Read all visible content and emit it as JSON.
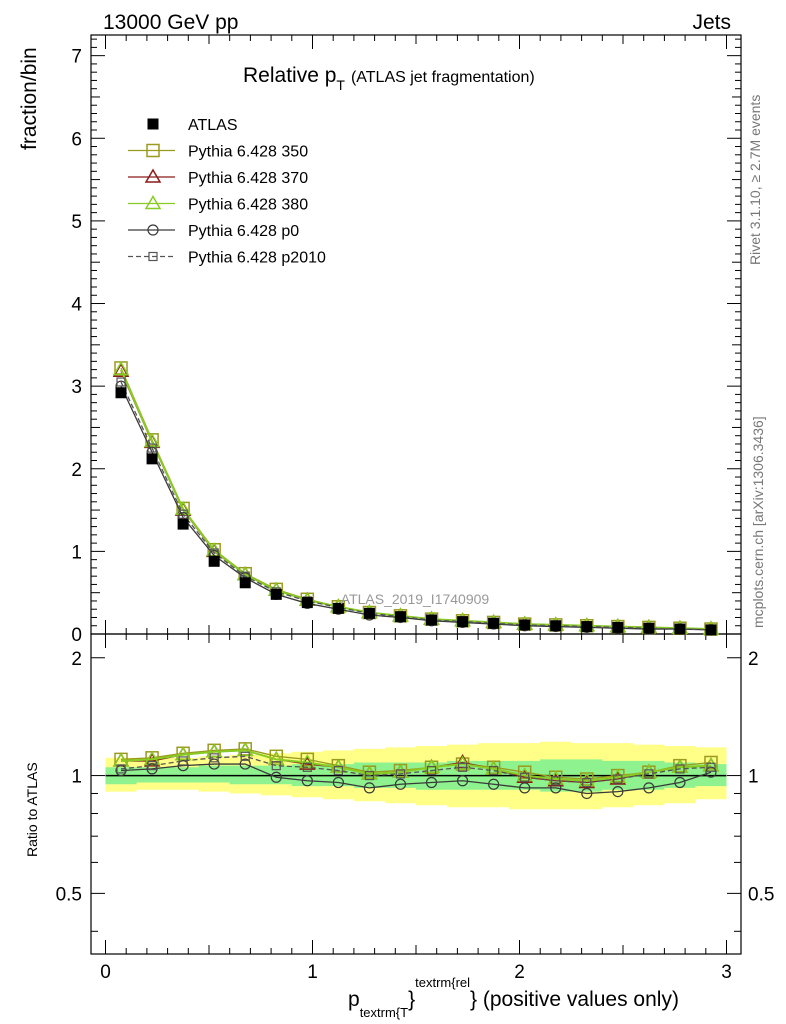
{
  "header": {
    "left": "13000 GeV pp",
    "right": "Jets"
  },
  "side_labels": {
    "top": "Rivet 3.1.10, ≥ 2.7M events",
    "bottom": "mcplots.cern.ch [arXiv:1306.3436]"
  },
  "title": {
    "main": "Relative p",
    "sub": "T",
    "paren": "(ATLAS jet fragmentation)"
  },
  "watermark": "ATLAS_2019_I1740909",
  "ylabel_top": "fraction/bin",
  "ylabel_bottom": "Ratio to ATLAS",
  "xlabel": {
    "p": "p",
    "sub": "textrm{T",
    "brace": "}",
    "sup": "textrm{rel",
    "tail": "} (positive values only)"
  },
  "chart_data": {
    "type": "line",
    "x": [
      0.075,
      0.225,
      0.375,
      0.525,
      0.675,
      0.825,
      0.975,
      1.125,
      1.275,
      1.425,
      1.575,
      1.725,
      1.875,
      2.025,
      2.175,
      2.325,
      2.475,
      2.625,
      2.775,
      2.925
    ],
    "xlim": [
      -0.07,
      3.07
    ],
    "ylim": [
      0,
      7.25
    ],
    "ratio_ylim": [
      0.35,
      2.3
    ],
    "xticks": [
      "0",
      "1",
      "2",
      "3"
    ],
    "yticks": [
      "0",
      "1",
      "2",
      "3",
      "4",
      "5",
      "6",
      "7"
    ],
    "ratio_yticks": [
      "0.5",
      "1",
      "2"
    ],
    "data": {
      "name": "ATLAS",
      "y": [
        2.92,
        2.12,
        1.33,
        0.88,
        0.62,
        0.48,
        0.38,
        0.31,
        0.25,
        0.21,
        0.17,
        0.15,
        0.13,
        0.11,
        0.1,
        0.09,
        0.08,
        0.07,
        0.06,
        0.05
      ]
    },
    "series": [
      {
        "name": "Pythia 6.428 350",
        "color": "#9a9a1e",
        "marker": "square",
        "dash": false,
        "y": [
          3.22,
          2.35,
          1.52,
          1.02,
          0.73,
          0.54,
          0.42,
          0.33,
          0.26,
          0.22,
          0.18,
          0.16,
          0.14,
          0.12,
          0.11,
          0.1,
          0.09,
          0.08,
          0.07,
          0.06
        ],
        "ratio": [
          1.1,
          1.11,
          1.14,
          1.16,
          1.17,
          1.12,
          1.1,
          1.06,
          1.02,
          1.03,
          1.05,
          1.07,
          1.05,
          1.02,
          0.99,
          0.98,
          1.0,
          1.02,
          1.06,
          1.08
        ]
      },
      {
        "name": "Pythia 6.428 370",
        "color": "#8b1a1a",
        "marker": "triangle",
        "dash": false,
        "y": [
          3.18,
          2.32,
          1.5,
          1.0,
          0.72,
          0.53,
          0.41,
          0.33,
          0.26,
          0.22,
          0.18,
          0.16,
          0.14,
          0.12,
          0.11,
          0.1,
          0.09,
          0.08,
          0.07,
          0.06
        ],
        "ratio": [
          1.09,
          1.09,
          1.13,
          1.15,
          1.16,
          1.1,
          1.07,
          1.05,
          1.01,
          1.02,
          1.05,
          1.08,
          1.04,
          0.99,
          0.97,
          0.96,
          0.98,
          1.02,
          1.05,
          1.06
        ]
      },
      {
        "name": "Pythia 6.428 380",
        "color": "#88cc22",
        "marker": "triangle",
        "dash": false,
        "y": [
          3.2,
          2.33,
          1.51,
          1.01,
          0.72,
          0.53,
          0.41,
          0.33,
          0.26,
          0.22,
          0.18,
          0.16,
          0.14,
          0.12,
          0.11,
          0.1,
          0.09,
          0.08,
          0.07,
          0.06
        ],
        "ratio": [
          1.09,
          1.1,
          1.13,
          1.15,
          1.16,
          1.1,
          1.08,
          1.05,
          1.01,
          1.02,
          1.05,
          1.07,
          1.04,
          1.0,
          0.98,
          0.97,
          0.99,
          1.02,
          1.05,
          1.06
        ]
      },
      {
        "name": "Pythia 6.428 p0",
        "color": "#3a3a3a",
        "marker": "circle",
        "dash": false,
        "y": [
          3.0,
          2.2,
          1.41,
          0.95,
          0.68,
          0.48,
          0.37,
          0.3,
          0.23,
          0.2,
          0.16,
          0.14,
          0.12,
          0.1,
          0.09,
          0.08,
          0.07,
          0.06,
          0.06,
          0.05
        ],
        "ratio": [
          1.03,
          1.04,
          1.06,
          1.07,
          1.07,
          0.99,
          0.97,
          0.96,
          0.93,
          0.95,
          0.96,
          0.97,
          0.95,
          0.93,
          0.93,
          0.9,
          0.91,
          0.93,
          0.96,
          1.02
        ]
      },
      {
        "name": "Pythia 6.428 p2010",
        "color": "#555555",
        "marker": "square-small",
        "dash": true,
        "y": [
          3.05,
          2.25,
          1.45,
          0.98,
          0.7,
          0.51,
          0.4,
          0.32,
          0.25,
          0.21,
          0.17,
          0.15,
          0.13,
          0.11,
          0.1,
          0.09,
          0.08,
          0.07,
          0.06,
          0.05
        ],
        "ratio": [
          1.04,
          1.06,
          1.09,
          1.11,
          1.12,
          1.06,
          1.05,
          1.03,
          1.0,
          1.01,
          1.03,
          1.05,
          1.03,
          0.99,
          0.97,
          0.96,
          0.98,
          1.01,
          1.04,
          1.05
        ]
      }
    ],
    "band_yellow": {
      "lo": [
        0.91,
        0.92,
        0.92,
        0.91,
        0.9,
        0.89,
        0.88,
        0.87,
        0.86,
        0.85,
        0.84,
        0.83,
        0.83,
        0.82,
        0.82,
        0.82,
        0.83,
        0.84,
        0.85,
        0.87
      ],
      "hi": [
        1.11,
        1.11,
        1.11,
        1.12,
        1.13,
        1.14,
        1.15,
        1.16,
        1.17,
        1.18,
        1.19,
        1.2,
        1.21,
        1.21,
        1.22,
        1.21,
        1.21,
        1.2,
        1.19,
        1.18
      ]
    },
    "band_green": {
      "lo": [
        0.95,
        0.96,
        0.96,
        0.96,
        0.95,
        0.95,
        0.94,
        0.94,
        0.93,
        0.93,
        0.92,
        0.92,
        0.92,
        0.92,
        0.91,
        0.91,
        0.92,
        0.92,
        0.93,
        0.94
      ],
      "hi": [
        1.05,
        1.05,
        1.05,
        1.06,
        1.06,
        1.06,
        1.07,
        1.07,
        1.08,
        1.08,
        1.08,
        1.09,
        1.09,
        1.09,
        1.1,
        1.1,
        1.09,
        1.09,
        1.08,
        1.07
      ]
    }
  }
}
